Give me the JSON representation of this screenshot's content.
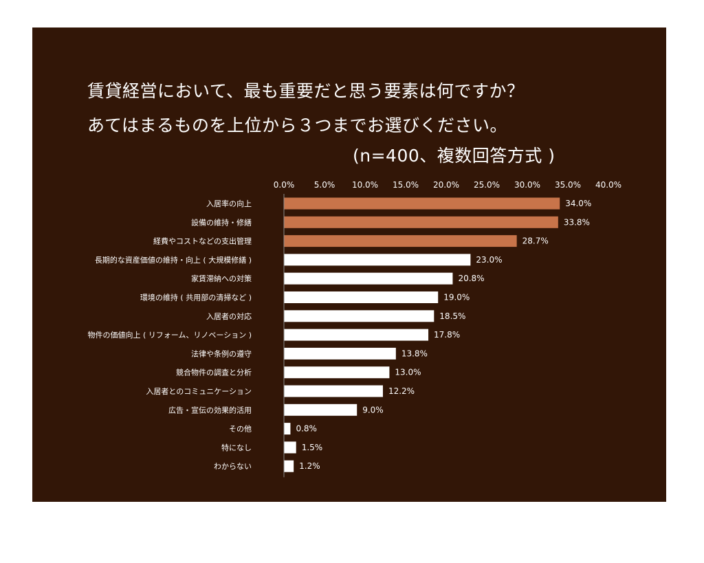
{
  "colors": {
    "background": "#321607",
    "highlight_bar": "#c8744a",
    "default_bar": "#ffffff",
    "text": "#ffffff",
    "axis": "#8a8a8a"
  },
  "chart_data": {
    "type": "bar",
    "orientation": "horizontal",
    "title": [
      "賃貸経営において、最も重要だと思う要素は何ですか？",
      "あてはまるものを上位から３つまでお選びください。",
      "(n=400、複数回答方式 )"
    ],
    "xlim": [
      0,
      40
    ],
    "x_ticks": [
      "0.0%",
      "5.0%",
      "10.0%",
      "15.0%",
      "20.0%",
      "25.0%",
      "30.0%",
      "35.0%",
      "40.0%"
    ],
    "x_axis_position": "top",
    "grid": false,
    "categories": [
      "入居率の向上",
      "設備の維持・修繕",
      "経費やコストなどの支出管理",
      "長期的な資産価値の維持・向上 ( 大規模修繕 )",
      "家賃滞納への対策",
      "環境の維持 ( 共用部の清掃など )",
      "入居者の対応",
      "物件の価値向上 ( リフォーム、リノベーション )",
      "法律や条例の遵守",
      "競合物件の調査と分析",
      "入居者とのコミュニケーション",
      "広告・宣伝の効果的活用",
      "その他",
      "特になし",
      "わからない"
    ],
    "values": [
      34.0,
      33.8,
      28.7,
      23.0,
      20.8,
      19.0,
      18.5,
      17.8,
      13.8,
      13.0,
      12.2,
      9.0,
      0.8,
      1.5,
      1.2
    ],
    "value_labels": [
      "34.0%",
      "33.8%",
      "28.7%",
      "23.0%",
      "20.8%",
      "19.0%",
      "18.5%",
      "17.8%",
      "13.8%",
      "13.0%",
      "12.2%",
      "9.0%",
      "0.8%",
      "1.5%",
      "1.2%"
    ],
    "highlighted_top": 3
  }
}
